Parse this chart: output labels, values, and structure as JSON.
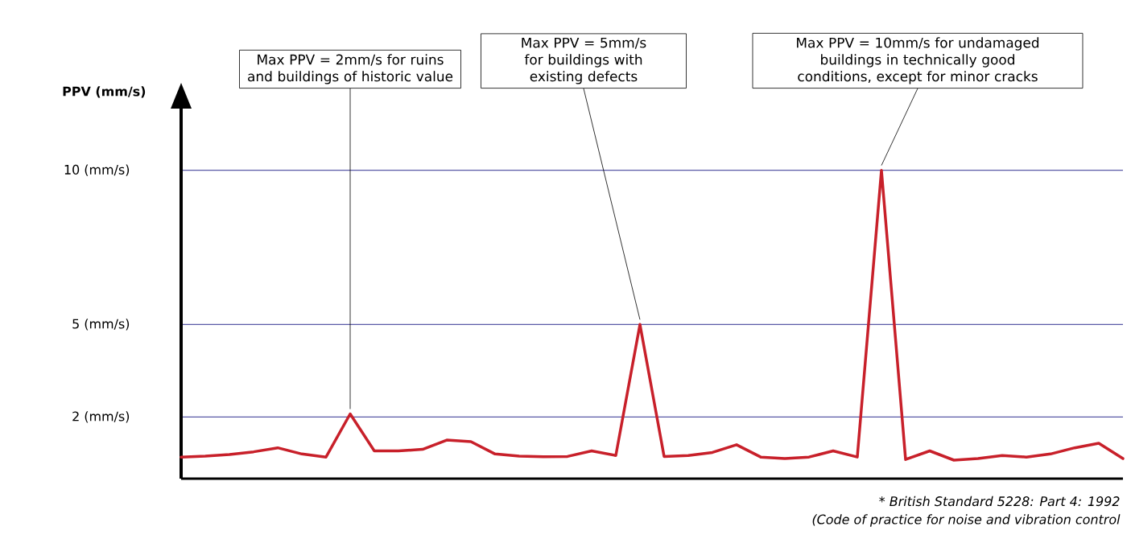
{
  "chart_data": {
    "type": "line",
    "ylabel": "PPV (mm/s)",
    "categories": [
      null,
      null,
      null,
      null,
      null,
      null,
      null,
      null,
      null,
      null,
      null,
      null,
      null,
      null,
      null,
      null,
      null,
      null,
      null,
      null,
      null,
      null,
      null,
      null,
      null,
      null,
      null,
      null,
      null,
      null,
      null,
      null,
      null,
      null,
      null,
      null,
      null,
      null,
      null,
      null
    ],
    "series": [
      {
        "color": "#c8202a",
        "values": [
          0.7,
          0.73,
          0.78,
          0.87,
          1.0,
          0.8,
          0.7,
          2.1,
          0.9,
          0.9,
          0.95,
          1.25,
          1.2,
          0.8,
          0.73,
          0.71,
          0.72,
          0.9,
          0.75,
          5.0,
          0.72,
          0.75,
          0.85,
          1.1,
          0.7,
          0.65,
          0.7,
          0.9,
          0.7,
          10.0,
          0.62,
          0.9,
          0.6,
          0.65,
          0.75,
          0.7,
          0.8,
          1.0,
          1.15,
          0.65
        ]
      }
    ],
    "ylim": [
      0,
      12
    ],
    "yticks": [
      {
        "value": 2,
        "label": "2 (mm/s)"
      },
      {
        "value": 5,
        "label": "5 (mm/s)"
      },
      {
        "value": 10,
        "label": "10 (mm/s)"
      }
    ],
    "tick_labels": "y",
    "grid": "y",
    "marker": "none",
    "line_style": "solid",
    "annotations": [
      "Max PPV = 2mm/s for ruins and buildings of historic value",
      "Max PPV = 5mm/s for buildings with existing defects",
      "Max PPV = 10mm/s for undamaged buildings in technically good conditions, except for minor cracks",
      "* British Standard 5228: Part 4: 1992",
      "(Code of practice for noise and vibration control"
    ]
  }
}
